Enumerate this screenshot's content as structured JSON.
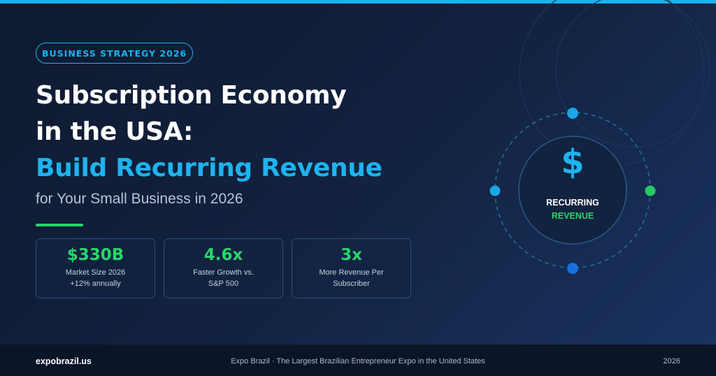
{
  "badge": "BUSINESS STRATEGY 2026",
  "title": {
    "line1": "Subscription Economy",
    "line2": "in the USA:",
    "line3": "Build Recurring Revenue"
  },
  "subtitle": "for Your Small Business in 2026",
  "stats": [
    {
      "value": "$330B",
      "label_line1": "Market Size 2026",
      "label_line2": "+12% annually"
    },
    {
      "value": "4.6x",
      "label_line1": "Faster Growth vs.",
      "label_line2": "S&P 500"
    },
    {
      "value": "3x",
      "label_line1": "More Revenue Per",
      "label_line2": "Subscriber"
    }
  ],
  "graphic": {
    "symbol": "$",
    "line1": "RECURRING",
    "line2": "REVENUE",
    "icon": "dollar-icon"
  },
  "footer": {
    "site": "expobrazil.us",
    "tagline": "Expo Brazil · The Largest Brazilian Entrepreneur Expo in the United States",
    "year": "2026"
  },
  "colors": {
    "accent_blue": "#19b4ef",
    "accent_green": "#27d66b",
    "background": "#12223f",
    "footer_bg": "#0b1528"
  }
}
